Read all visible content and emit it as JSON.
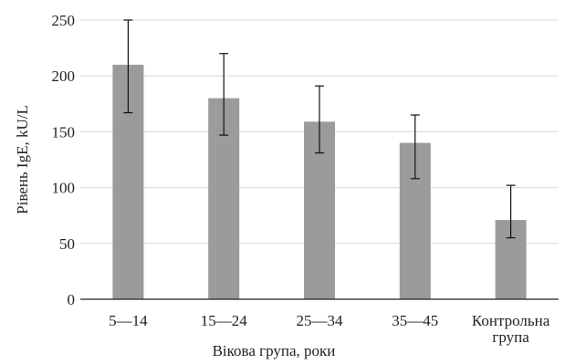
{
  "chart_data": {
    "type": "bar",
    "categories": [
      "5—14",
      "15—24",
      "25—34",
      "35—45",
      [
        "Контрольна",
        "група"
      ]
    ],
    "values": [
      210,
      180,
      159,
      140,
      71
    ],
    "error_low": [
      167,
      147,
      131,
      108,
      55
    ],
    "error_high": [
      250,
      220,
      191,
      165,
      102
    ],
    "xlabel": "Вікова група, роки",
    "ylabel": "Рівень  IgE, kU/L",
    "ylim": [
      0,
      250
    ],
    "yticks": [
      0,
      50,
      100,
      150,
      200,
      250
    ],
    "grid": true,
    "bar_color": "#9b9b9b",
    "grid_color": "#d9d9d9",
    "axis_color": "#222222"
  }
}
